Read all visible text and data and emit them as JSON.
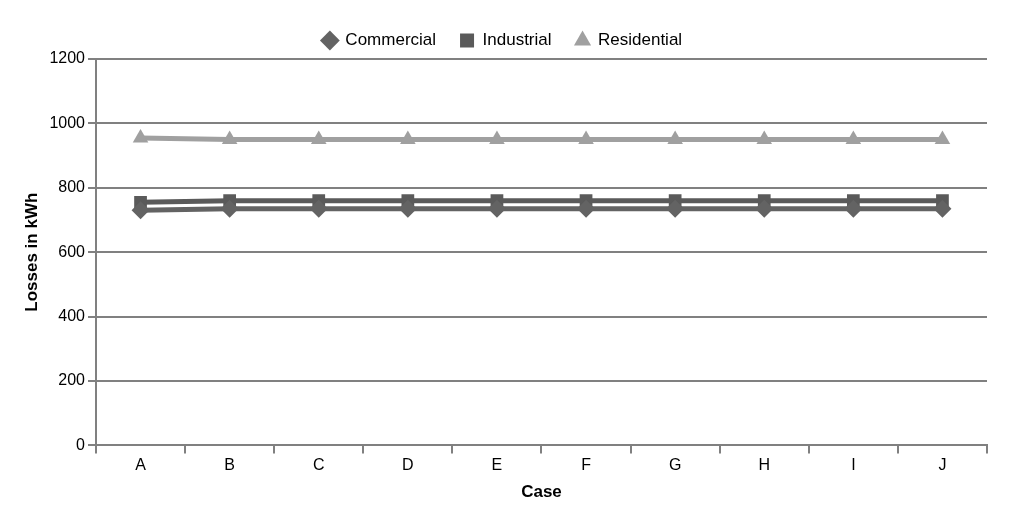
{
  "chart_data": {
    "type": "line",
    "xlabel": "Case",
    "ylabel": "Losses in kWh",
    "categories": [
      "A",
      "B",
      "C",
      "D",
      "E",
      "F",
      "G",
      "H",
      "I",
      "J"
    ],
    "series": [
      {
        "name": "Commercial",
        "color": "#636363",
        "marker": "diamond",
        "values": [
          730,
          735,
          735,
          735,
          735,
          735,
          735,
          735,
          735,
          735
        ]
      },
      {
        "name": "Industrial",
        "color": "#5a5a5a",
        "marker": "square",
        "values": [
          755,
          760,
          760,
          760,
          760,
          760,
          760,
          760,
          760,
          760
        ]
      },
      {
        "name": "Residential",
        "color": "#a0a0a0",
        "marker": "triangle",
        "values": [
          955,
          950,
          950,
          950,
          950,
          950,
          950,
          950,
          950,
          950
        ]
      }
    ],
    "ylim": [
      0,
      1200
    ],
    "yticks": [
      0,
      200,
      400,
      600,
      800,
      1000,
      1200
    ],
    "grid": "y",
    "legend": "top",
    "line_style": "solid"
  }
}
